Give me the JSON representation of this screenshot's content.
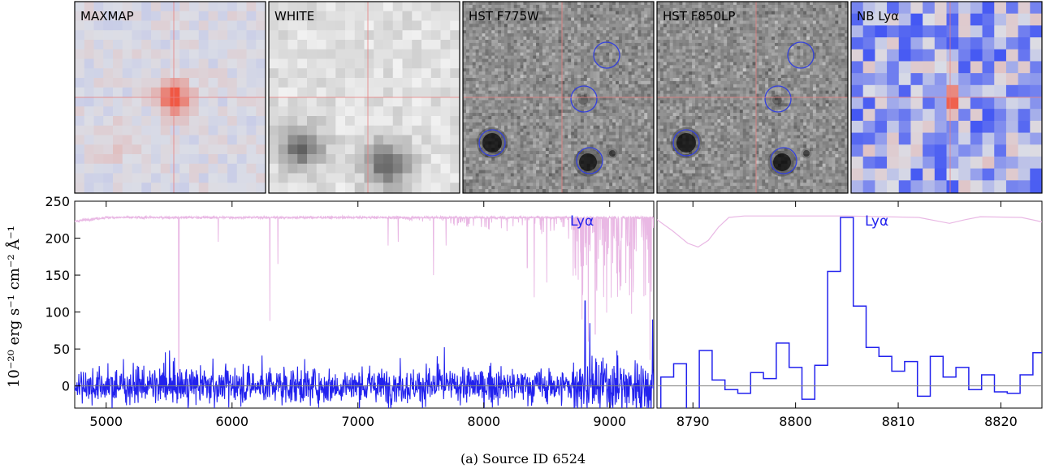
{
  "figure": {
    "caption": "(a) Source ID 6524",
    "ylabel": "10⁻²⁰ erg s⁻¹ cm⁻² Å⁻¹",
    "colors": {
      "spectrum": "#2222ee",
      "sky": "#e9b8e4",
      "crosshair": "#e88080",
      "circles": "#3340dd",
      "zero_line": "#808080"
    }
  },
  "thumbnails": [
    {
      "label": "MAXMAP",
      "colormap": "coolwarm-smooth"
    },
    {
      "label": "WHITE",
      "colormap": "grey-pixelated"
    },
    {
      "label": "HST F775W",
      "colormap": "grey-noise",
      "circles": 4
    },
    {
      "label": "HST F850LP",
      "colormap": "grey-noise",
      "circles": 4
    },
    {
      "label": "NB Lyα",
      "colormap": "coolwarm-pixelated"
    }
  ],
  "chart_data": [
    {
      "type": "line",
      "title": "",
      "line_label": "Lyα",
      "xlabel": "",
      "ylabel": "10⁻²⁰ erg s⁻¹ cm⁻² Å⁻¹",
      "xlim": [
        4750,
        9350
      ],
      "ylim": [
        -30,
        250
      ],
      "xticks": [
        5000,
        6000,
        7000,
        8000,
        9000
      ],
      "yticks": [
        0,
        50,
        100,
        150,
        200,
        250
      ],
      "grid": false,
      "series": [
        {
          "role": "spectrum",
          "color": "#2222ee",
          "noise_sigma": 12,
          "features": [
            [
              8805,
              115
            ],
            [
              8842,
              85
            ],
            [
              9340,
              90
            ]
          ]
        },
        {
          "role": "sky",
          "color": "#e9b8e4",
          "baseline": 228,
          "absorption_lines": [
            [
              5577,
              0
            ],
            [
              5890,
              195
            ],
            [
              6300,
              88
            ],
            [
              6364,
              165
            ],
            [
              7240,
              190
            ],
            [
              7320,
              195
            ],
            [
              7600,
              150
            ],
            [
              7700,
              190
            ],
            [
              8345,
              160
            ],
            [
              8400,
              120
            ],
            [
              8500,
              140
            ],
            [
              8780,
              90
            ],
            [
              8830,
              60
            ],
            [
              8885,
              70
            ],
            [
              9320,
              35
            ]
          ]
        }
      ]
    },
    {
      "type": "line",
      "title": "",
      "line_label": "Lyα",
      "xlabel": "",
      "xlim": [
        8786.5,
        8824
      ],
      "ylim": [
        -30,
        250
      ],
      "xticks": [
        8790,
        8800,
        8810,
        8820
      ],
      "grid": false,
      "series": [
        {
          "role": "spectrum",
          "color": "#2222ee",
          "drawstyle": "steps-mid",
          "x": [
            8786.25,
            8787.5,
            8788.75,
            8790,
            8791.25,
            8792.5,
            8793.75,
            8795,
            8796.25,
            8797.5,
            8798.75,
            8800,
            8801.25,
            8802.5,
            8803.75,
            8805,
            8806.25,
            8807.5,
            8808.75,
            8810,
            8811.25,
            8812.5,
            8813.75,
            8815,
            8816.25,
            8817.5,
            8818.75,
            8820,
            8821.25,
            8822.5,
            8823.75
          ],
          "y": [
            -50,
            12,
            30,
            -50,
            48,
            8,
            -5,
            -10,
            18,
            10,
            58,
            25,
            -18,
            28,
            155,
            228,
            108,
            52,
            40,
            20,
            33,
            -14,
            40,
            12,
            25,
            -5,
            15,
            -8,
            -10,
            15,
            45
          ]
        },
        {
          "role": "sky",
          "color": "#e9b8e4",
          "x": [
            8786.5,
            8788,
            8789.5,
            8790.5,
            8791.5,
            8792.5,
            8793.5,
            8795,
            8805,
            8812,
            8813.5,
            8815,
            8816.5,
            8818,
            8822,
            8824
          ],
          "y": [
            225,
            210,
            193,
            188,
            197,
            215,
            228,
            230,
            230,
            228,
            224,
            220,
            225,
            229,
            228,
            222
          ]
        }
      ]
    }
  ]
}
